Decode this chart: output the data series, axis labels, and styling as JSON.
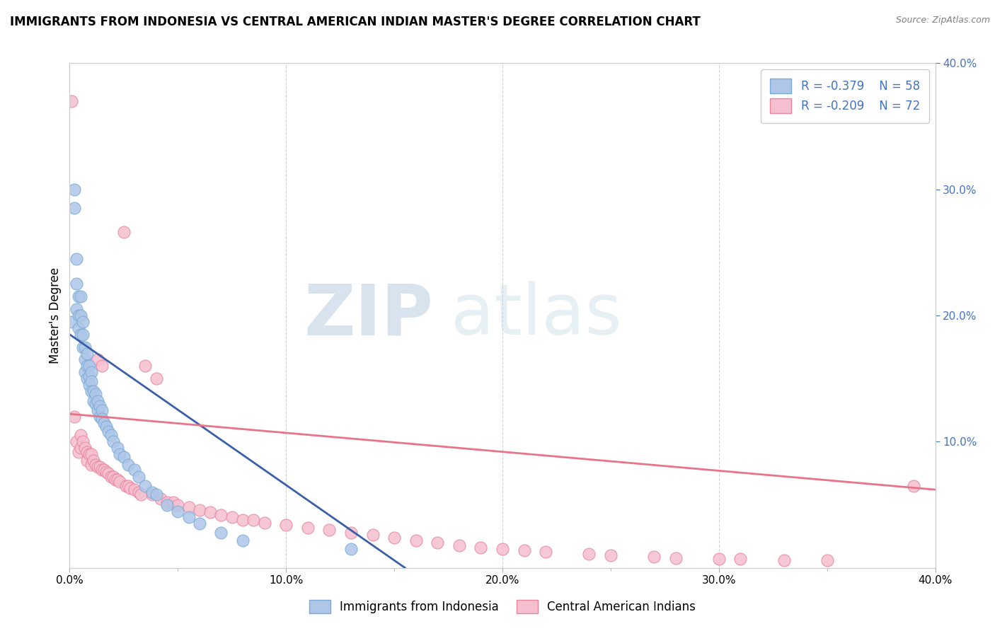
{
  "title": "IMMIGRANTS FROM INDONESIA VS CENTRAL AMERICAN INDIAN MASTER'S DEGREE CORRELATION CHART",
  "source": "Source: ZipAtlas.com",
  "ylabel": "Master's Degree",
  "xlim": [
    0.0,
    0.4
  ],
  "ylim": [
    0.0,
    0.4
  ],
  "x_ticks": [
    0.0,
    0.1,
    0.2,
    0.3,
    0.4
  ],
  "x_tick_labels": [
    "0.0%",
    "10.0%",
    "20.0%",
    "30.0%",
    "40.0%"
  ],
  "y_ticks_right": [
    0.1,
    0.2,
    0.3,
    0.4
  ],
  "y_tick_labels_right": [
    "10.0%",
    "20.0%",
    "30.0%",
    "40.0%"
  ],
  "blue_color": "#aec6e8",
  "blue_edge_color": "#7aabd4",
  "pink_color": "#f5bfcf",
  "pink_edge_color": "#e8849e",
  "blue_line_color": "#3a5fa8",
  "pink_line_color": "#e8748a",
  "label1": "Immigrants from Indonesia",
  "label2": "Central American Indians",
  "watermark_zip": "ZIP",
  "watermark_atlas": "atlas",
  "background_color": "#ffffff",
  "grid_color": "#cccccc",
  "blue_scatter_x": [
    0.001,
    0.002,
    0.002,
    0.003,
    0.003,
    0.003,
    0.004,
    0.004,
    0.004,
    0.005,
    0.005,
    0.005,
    0.006,
    0.006,
    0.006,
    0.007,
    0.007,
    0.007,
    0.008,
    0.008,
    0.008,
    0.009,
    0.009,
    0.009,
    0.01,
    0.01,
    0.01,
    0.011,
    0.011,
    0.012,
    0.012,
    0.013,
    0.013,
    0.014,
    0.014,
    0.015,
    0.015,
    0.016,
    0.017,
    0.018,
    0.019,
    0.02,
    0.022,
    0.023,
    0.025,
    0.027,
    0.03,
    0.032,
    0.035,
    0.038,
    0.04,
    0.045,
    0.05,
    0.055,
    0.06,
    0.07,
    0.08,
    0.13
  ],
  "blue_scatter_y": [
    0.195,
    0.3,
    0.285,
    0.245,
    0.225,
    0.205,
    0.215,
    0.2,
    0.19,
    0.215,
    0.2,
    0.185,
    0.195,
    0.185,
    0.175,
    0.175,
    0.165,
    0.155,
    0.17,
    0.16,
    0.15,
    0.16,
    0.152,
    0.145,
    0.155,
    0.148,
    0.14,
    0.14,
    0.132,
    0.138,
    0.13,
    0.132,
    0.125,
    0.128,
    0.12,
    0.125,
    0.118,
    0.115,
    0.112,
    0.108,
    0.105,
    0.1,
    0.095,
    0.09,
    0.088,
    0.082,
    0.078,
    0.072,
    0.065,
    0.06,
    0.058,
    0.05,
    0.045,
    0.04,
    0.035,
    0.028,
    0.022,
    0.015
  ],
  "pink_scatter_x": [
    0.001,
    0.002,
    0.003,
    0.004,
    0.005,
    0.005,
    0.006,
    0.007,
    0.008,
    0.008,
    0.009,
    0.01,
    0.01,
    0.011,
    0.012,
    0.013,
    0.013,
    0.014,
    0.015,
    0.015,
    0.016,
    0.017,
    0.018,
    0.019,
    0.02,
    0.021,
    0.022,
    0.023,
    0.025,
    0.026,
    0.027,
    0.028,
    0.03,
    0.032,
    0.033,
    0.035,
    0.038,
    0.04,
    0.042,
    0.045,
    0.048,
    0.05,
    0.055,
    0.06,
    0.065,
    0.07,
    0.075,
    0.08,
    0.085,
    0.09,
    0.1,
    0.11,
    0.12,
    0.13,
    0.14,
    0.15,
    0.16,
    0.17,
    0.18,
    0.19,
    0.2,
    0.21,
    0.22,
    0.24,
    0.25,
    0.27,
    0.28,
    0.3,
    0.31,
    0.33,
    0.35,
    0.39
  ],
  "pink_scatter_y": [
    0.37,
    0.12,
    0.1,
    0.092,
    0.105,
    0.095,
    0.1,
    0.095,
    0.092,
    0.085,
    0.09,
    0.09,
    0.082,
    0.085,
    0.082,
    0.165,
    0.08,
    0.08,
    0.16,
    0.078,
    0.078,
    0.076,
    0.075,
    0.072,
    0.072,
    0.07,
    0.07,
    0.068,
    0.266,
    0.065,
    0.065,
    0.063,
    0.062,
    0.06,
    0.058,
    0.16,
    0.058,
    0.15,
    0.055,
    0.052,
    0.052,
    0.05,
    0.048,
    0.046,
    0.044,
    0.042,
    0.04,
    0.038,
    0.038,
    0.036,
    0.034,
    0.032,
    0.03,
    0.028,
    0.026,
    0.024,
    0.022,
    0.02,
    0.018,
    0.016,
    0.015,
    0.014,
    0.013,
    0.011,
    0.01,
    0.009,
    0.008,
    0.007,
    0.007,
    0.006,
    0.006,
    0.065
  ],
  "blue_line_x": [
    0.0,
    0.155
  ],
  "blue_line_y": [
    0.185,
    0.0
  ],
  "pink_line_x": [
    0.0,
    0.4
  ],
  "pink_line_y": [
    0.122,
    0.062
  ]
}
